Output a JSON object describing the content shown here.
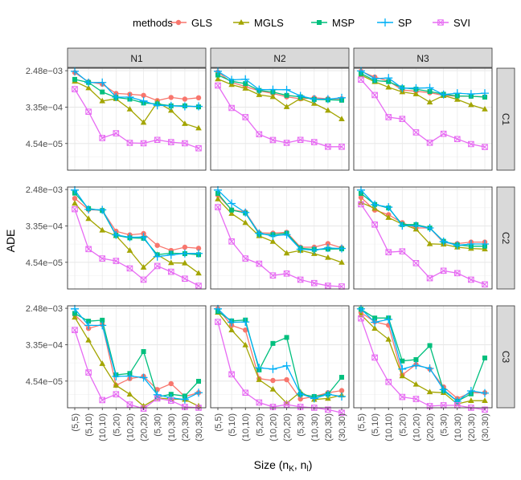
{
  "chart_data": {
    "type": "line",
    "xlabel": "Size (n",
    "xlabel_sub1": "K",
    "xlabel_sep": ", n",
    "xlabel_sub2": "l",
    "xlabel_close": ")",
    "ylabel": "ADE",
    "y_scale": "log10",
    "ylim": [
      1.05e-05,
      0.00284
    ],
    "y_ticks": [
      0.00248,
      0.000335,
      4.54e-05
    ],
    "y_tick_labels": [
      "2.48e−03",
      "3.35e−04",
      "4.54e−05"
    ],
    "categories": [
      "(5,5)",
      "(5,10)",
      "(10,10)",
      "(5,20)",
      "(10,20)",
      "(20,20)",
      "(5,30)",
      "(10,30)",
      "(20,30)",
      "(30,30)"
    ],
    "legend_title": "methods",
    "legend_position": "top",
    "col_facets": [
      "N1",
      "N2",
      "N3"
    ],
    "row_facets": [
      "C1",
      "C2",
      "C3"
    ],
    "methods": [
      {
        "name": "GLS",
        "color": "#F8766D",
        "shape": "circle"
      },
      {
        "name": "MGLS",
        "color": "#A3A500",
        "shape": "triangle"
      },
      {
        "name": "MSP",
        "color": "#00BF7D",
        "shape": "square"
      },
      {
        "name": "SP",
        "color": "#00B0F6",
        "shape": "plus"
      },
      {
        "name": "SVI",
        "color": "#E76BF3",
        "shape": "boxcross"
      }
    ],
    "panels": [
      {
        "row": "C1",
        "col": "N1",
        "series": {
          "GLS": [
            0.00224,
            0.00134,
            0.00118,
            0.00071,
            0.00068,
            0.00064,
            0.00048,
            0.00057,
            0.00052,
            0.00056
          ],
          "MGLS": [
            0.00138,
            0.00096,
            0.00047,
            0.00053,
            0.0003,
            0.000144,
            0.00044,
            0.00028,
            0.000135,
            0.000106
          ],
          "MSP": [
            0.00154,
            0.0013,
            0.00077,
            0.00057,
            0.00052,
            0.00042,
            0.0004,
            0.00036,
            0.00036,
            0.00034
          ],
          "SP": [
            0.00239,
            0.00129,
            0.0013,
            0.00058,
            0.00058,
            0.00047,
            0.00037,
            0.00036,
            0.00035,
            0.00035
          ],
          "SVI": [
            0.0009,
            0.00026,
            6.15e-05,
            7.95e-05,
            4.7e-05,
            4.6e-05,
            5.55e-05,
            4.9e-05,
            4.6e-05,
            3.5e-05
          ]
        }
      },
      {
        "row": "C1",
        "col": "N2",
        "series": {
          "GLS": [
            0.0023,
            0.0013,
            0.00104,
            0.00082,
            0.00071,
            0.00059,
            0.00053,
            0.00056,
            0.00053,
            0.00053
          ],
          "MGLS": [
            0.00157,
            0.00115,
            0.00094,
            0.00066,
            0.00059,
            0.00034,
            0.00054,
            0.00041,
            0.00028,
            0.000175
          ],
          "MSP": [
            0.00195,
            0.00139,
            0.00122,
            0.00084,
            0.00077,
            0.00064,
            0.00059,
            0.00051,
            0.0005,
            0.00049
          ],
          "SP": [
            0.0024,
            0.0015,
            0.00155,
            0.00088,
            0.00088,
            0.00087,
            0.00062,
            0.00052,
            0.00052,
            0.00056
          ],
          "SVI": [
            0.0011,
            0.00032,
            0.000193,
            7.55e-05,
            5.5e-05,
            4.7e-05,
            5.55e-05,
            4.9e-05,
            3.8e-05,
            3.8e-05
          ]
        }
      },
      {
        "row": "C1",
        "col": "N3",
        "series": {
          "GLS": [
            0.00239,
            0.00175,
            0.0014,
            0.00086,
            0.0008,
            0.00074,
            0.00064,
            0.00061,
            0.00061,
            0.00059
          ],
          "MGLS": [
            0.00195,
            0.00135,
            0.001,
            0.00077,
            0.00069,
            0.00044,
            0.00063,
            0.00051,
            0.00038,
            0.0003
          ],
          "MSP": [
            0.00213,
            0.00144,
            0.00136,
            0.00097,
            0.0009,
            0.00079,
            0.00068,
            0.00062,
            0.00061,
            0.00058
          ],
          "SP": [
            0.00245,
            0.0016,
            0.00166,
            0.00095,
            0.00095,
            0.00097,
            0.00067,
            0.00072,
            0.00069,
            0.00072
          ],
          "SVI": [
            0.00152,
            0.00065,
            0.000193,
            0.000175,
            8.35e-05,
            4.75e-05,
            7.75e-05,
            5.8e-05,
            4.4e-05,
            3.75e-05
          ]
        }
      },
      {
        "row": "C2",
        "col": "N1",
        "series": {
          "GLS": [
            0.00152,
            0.00082,
            0.00079,
            0.00025,
            0.000205,
            0.00022,
            0.000115,
            8.7e-05,
            0.000104,
            9.8e-05
          ],
          "MGLS": [
            0.00116,
            0.0005,
            0.000265,
            0.000195,
            8.7e-05,
            3.45e-05,
            6.9e-05,
            4.4e-05,
            4.35e-05,
            2.5e-05
          ],
          "MSP": [
            0.00203,
            0.00087,
            0.00078,
            0.0002,
            0.000174,
            0.00017,
            6.9e-05,
            7.5e-05,
            7.3e-05,
            6.9e-05
          ],
          "SP": [
            0.0024,
            0.00083,
            0.00081,
            0.000205,
            0.00018,
            0.000182,
            6.2e-05,
            6.8e-05,
            7.4e-05,
            7.4e-05
          ],
          "SVI": [
            0.00084,
            9.4e-05,
            5.6e-05,
            4.9e-05,
            3.25e-05,
            1.75e-05,
            3.7e-05,
            2.7e-05,
            1.85e-05,
            1.25e-05
          ]
        }
      },
      {
        "row": "C2",
        "col": "N2",
        "series": {
          "GLS": [
            0.00182,
            0.00081,
            0.00072,
            0.00023,
            0.000225,
            0.000236,
            0.000104,
            0.000104,
            0.000127,
            0.000101
          ],
          "MGLS": [
            0.00147,
            0.00066,
            0.0004,
            0.000194,
            0.000142,
            7.5e-05,
            8.7e-05,
            7.3e-05,
            5.9e-05,
            4.5e-05
          ],
          "MSP": [
            0.002,
            0.0008,
            0.00068,
            0.000215,
            0.000207,
            0.000224,
            9.8e-05,
            9.2e-05,
            9.4e-05,
            9.5e-05
          ],
          "SP": [
            0.0024,
            0.00115,
            0.0007,
            0.000223,
            0.000194,
            0.000208,
            9.3e-05,
            8.9e-05,
            0.0001,
            9.7e-05
          ],
          "SVI": [
            0.00094,
            0.000143,
            5.6e-05,
            4.2e-05,
            2.2e-05,
            2.45e-05,
            1.75e-05,
            1.45e-05,
            1.25e-05,
            1.2e-05
          ]
        }
      },
      {
        "row": "C2",
        "col": "N3",
        "series": {
          "GLS": [
            0.0016,
            0.0008,
            0.00062,
            0.0004,
            0.0003,
            0.0003,
            0.000134,
            0.000127,
            0.000138,
            0.000138
          ],
          "MGLS": [
            0.00122,
            0.00088,
            0.00053,
            0.00037,
            0.00028,
            0.000125,
            0.000122,
            0.000104,
            9.7e-05,
            9.4e-05
          ],
          "MSP": [
            0.002,
            0.00109,
            0.0009,
            0.00036,
            0.00036,
            0.0003,
            0.000144,
            0.000118,
            0.00011,
            0.00011
          ],
          "SP": [
            0.0024,
            0.00108,
            0.00094,
            0.00034,
            0.00034,
            0.0003,
            0.000142,
            0.000115,
            0.000124,
            0.000124
          ],
          "SVI": [
            0.0011,
            0.00036,
            7.9e-05,
            8.3e-05,
            4.35e-05,
            1.9e-05,
            2.85e-05,
            2.5e-05,
            1.75e-05,
            1.35e-05
          ]
        }
      },
      {
        "row": "C3",
        "col": "N1",
        "series": {
          "GLS": [
            0.00174,
            0.00082,
            0.00102,
            3.6e-05,
            5.2e-05,
            5.9e-05,
            2.85e-05,
            3.95e-05,
            1.95e-05,
            2.4e-05
          ],
          "MGLS": [
            0.00151,
            0.00043,
            0.000118,
            3.6e-05,
            2.2e-05,
            1.15e-05,
            1.8e-05,
            1.7e-05,
            1.65e-05,
            1.15e-05
          ],
          "MSP": [
            0.00187,
            0.00122,
            0.00129,
            6.4e-05,
            6.9e-05,
            0.00023,
            1.9e-05,
            2.2e-05,
            2e-05,
            4.5e-05
          ],
          "SP": [
            0.0024,
            0.00097,
            0.00097,
            5.9e-05,
            6e-05,
            5.5e-05,
            2.15e-05,
            1.8e-05,
            1.65e-05,
            2.4e-05
          ],
          "SVI": [
            0.00075,
            7.3e-05,
            1.6e-05,
            2.2e-05,
            1.25e-05,
            1e-05,
            1.75e-05,
            1.55e-05,
            1.1e-05,
            1.05e-05
          ]
        }
      },
      {
        "row": "C3",
        "col": "N2",
        "series": {
          "GLS": [
            0.0024,
            0.00097,
            0.00075,
            5.2e-05,
            4.7e-05,
            4.9e-05,
            1.7e-05,
            1.95e-05,
            2.4e-05,
            2.7e-05
          ],
          "MGLS": [
            0.00198,
            0.00075,
            0.00033,
            4.9e-05,
            2.9e-05,
            1.35e-05,
            2.5e-05,
            1.65e-05,
            1.75e-05,
            2.1e-05
          ],
          "MSP": [
            0.00207,
            0.00124,
            0.0013,
            8.4e-05,
            0.00036,
            0.0005,
            2.2e-05,
            1.95e-05,
            2.2e-05,
            5.6e-05
          ],
          "SP": [
            0.0024,
            0.00115,
            0.00117,
            9.4e-05,
            8.8e-05,
            0.000105,
            2.25e-05,
            1.75e-05,
            2.2e-05,
            1.95e-05
          ],
          "SVI": [
            0.00117,
            6.6e-05,
            2.4e-05,
            1.4e-05,
            1.1e-05,
            1.25e-05,
            1.1e-05,
            1.05e-05,
            9.5e-06,
            8e-06
          ]
        }
      },
      {
        "row": "C3",
        "col": "N3",
        "series": {
          "GLS": [
            0.00195,
            0.00118,
            0.00098,
            6.4e-05,
            0.000113,
            8.8e-05,
            3.3e-05,
            1.75e-05,
            2.4e-05,
            2.4e-05
          ],
          "MGLS": [
            0.00174,
            0.00082,
            0.00045,
            6e-05,
            3.8e-05,
            2.5e-05,
            2.4e-05,
            1.3e-05,
            1.55e-05,
            1.55e-05
          ],
          "MSP": [
            0.00235,
            0.00145,
            0.00146,
            0.000137,
            0.000148,
            0.00032,
            2.7e-05,
            1.5e-05,
            2.25e-05,
            0.000162
          ],
          "SP": [
            0.0024,
            0.00115,
            0.00135,
            8.8e-05,
            0.000108,
            9.1e-05,
            2.85e-05,
            1.5e-05,
            2.65e-05,
            2.35e-05
          ],
          "SVI": [
            0.00142,
            0.000166,
            4.35e-05,
            1.9e-05,
            1.7e-05,
            1.15e-05,
            1.2e-05,
            1.2e-05,
            1.05e-05,
            9.5e-06
          ]
        }
      }
    ]
  }
}
